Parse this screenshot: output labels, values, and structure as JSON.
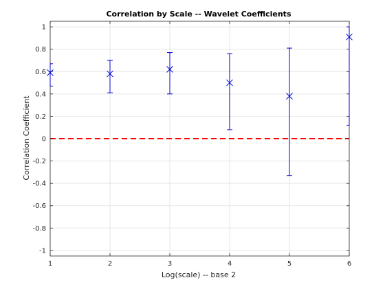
{
  "chart_data": {
    "type": "scatter",
    "title": "Correlation by Scale -- Wavelet Coefficients",
    "xlabel": "Log(scale) -- base 2",
    "ylabel": "Correlation Coefficient",
    "xlim": [
      1,
      6
    ],
    "ylim": [
      -1.05,
      1.05
    ],
    "xticks": [
      1,
      2,
      3,
      4,
      5,
      6
    ],
    "xtick_labels": [
      "1",
      "2",
      "3",
      "4",
      "5",
      "6"
    ],
    "yticks": [
      1,
      0.8,
      0.6,
      0.4,
      0.2,
      0,
      -0.2,
      -0.4,
      -0.6,
      -0.8,
      -1
    ],
    "ytick_labels": [
      "1",
      "0.8",
      "0.6",
      "0.4",
      "0.2",
      "0",
      "-0.2",
      "-0.4",
      "-0.6",
      "-0.8",
      "-1"
    ],
    "grid": true,
    "series": [
      {
        "marker": "x",
        "color": "#0000cc",
        "x": [
          1,
          2,
          3,
          4,
          5,
          6
        ],
        "y": [
          0.59,
          0.58,
          0.62,
          0.5,
          0.38,
          0.91
        ],
        "lower": [
          0.47,
          0.41,
          0.4,
          0.08,
          -0.33,
          0.12
        ],
        "upper": [
          0.67,
          0.7,
          0.77,
          0.76,
          0.81,
          1.0
        ]
      }
    ],
    "reference_line": {
      "y": 0,
      "style": "dashed",
      "color": "#ff0000"
    }
  }
}
